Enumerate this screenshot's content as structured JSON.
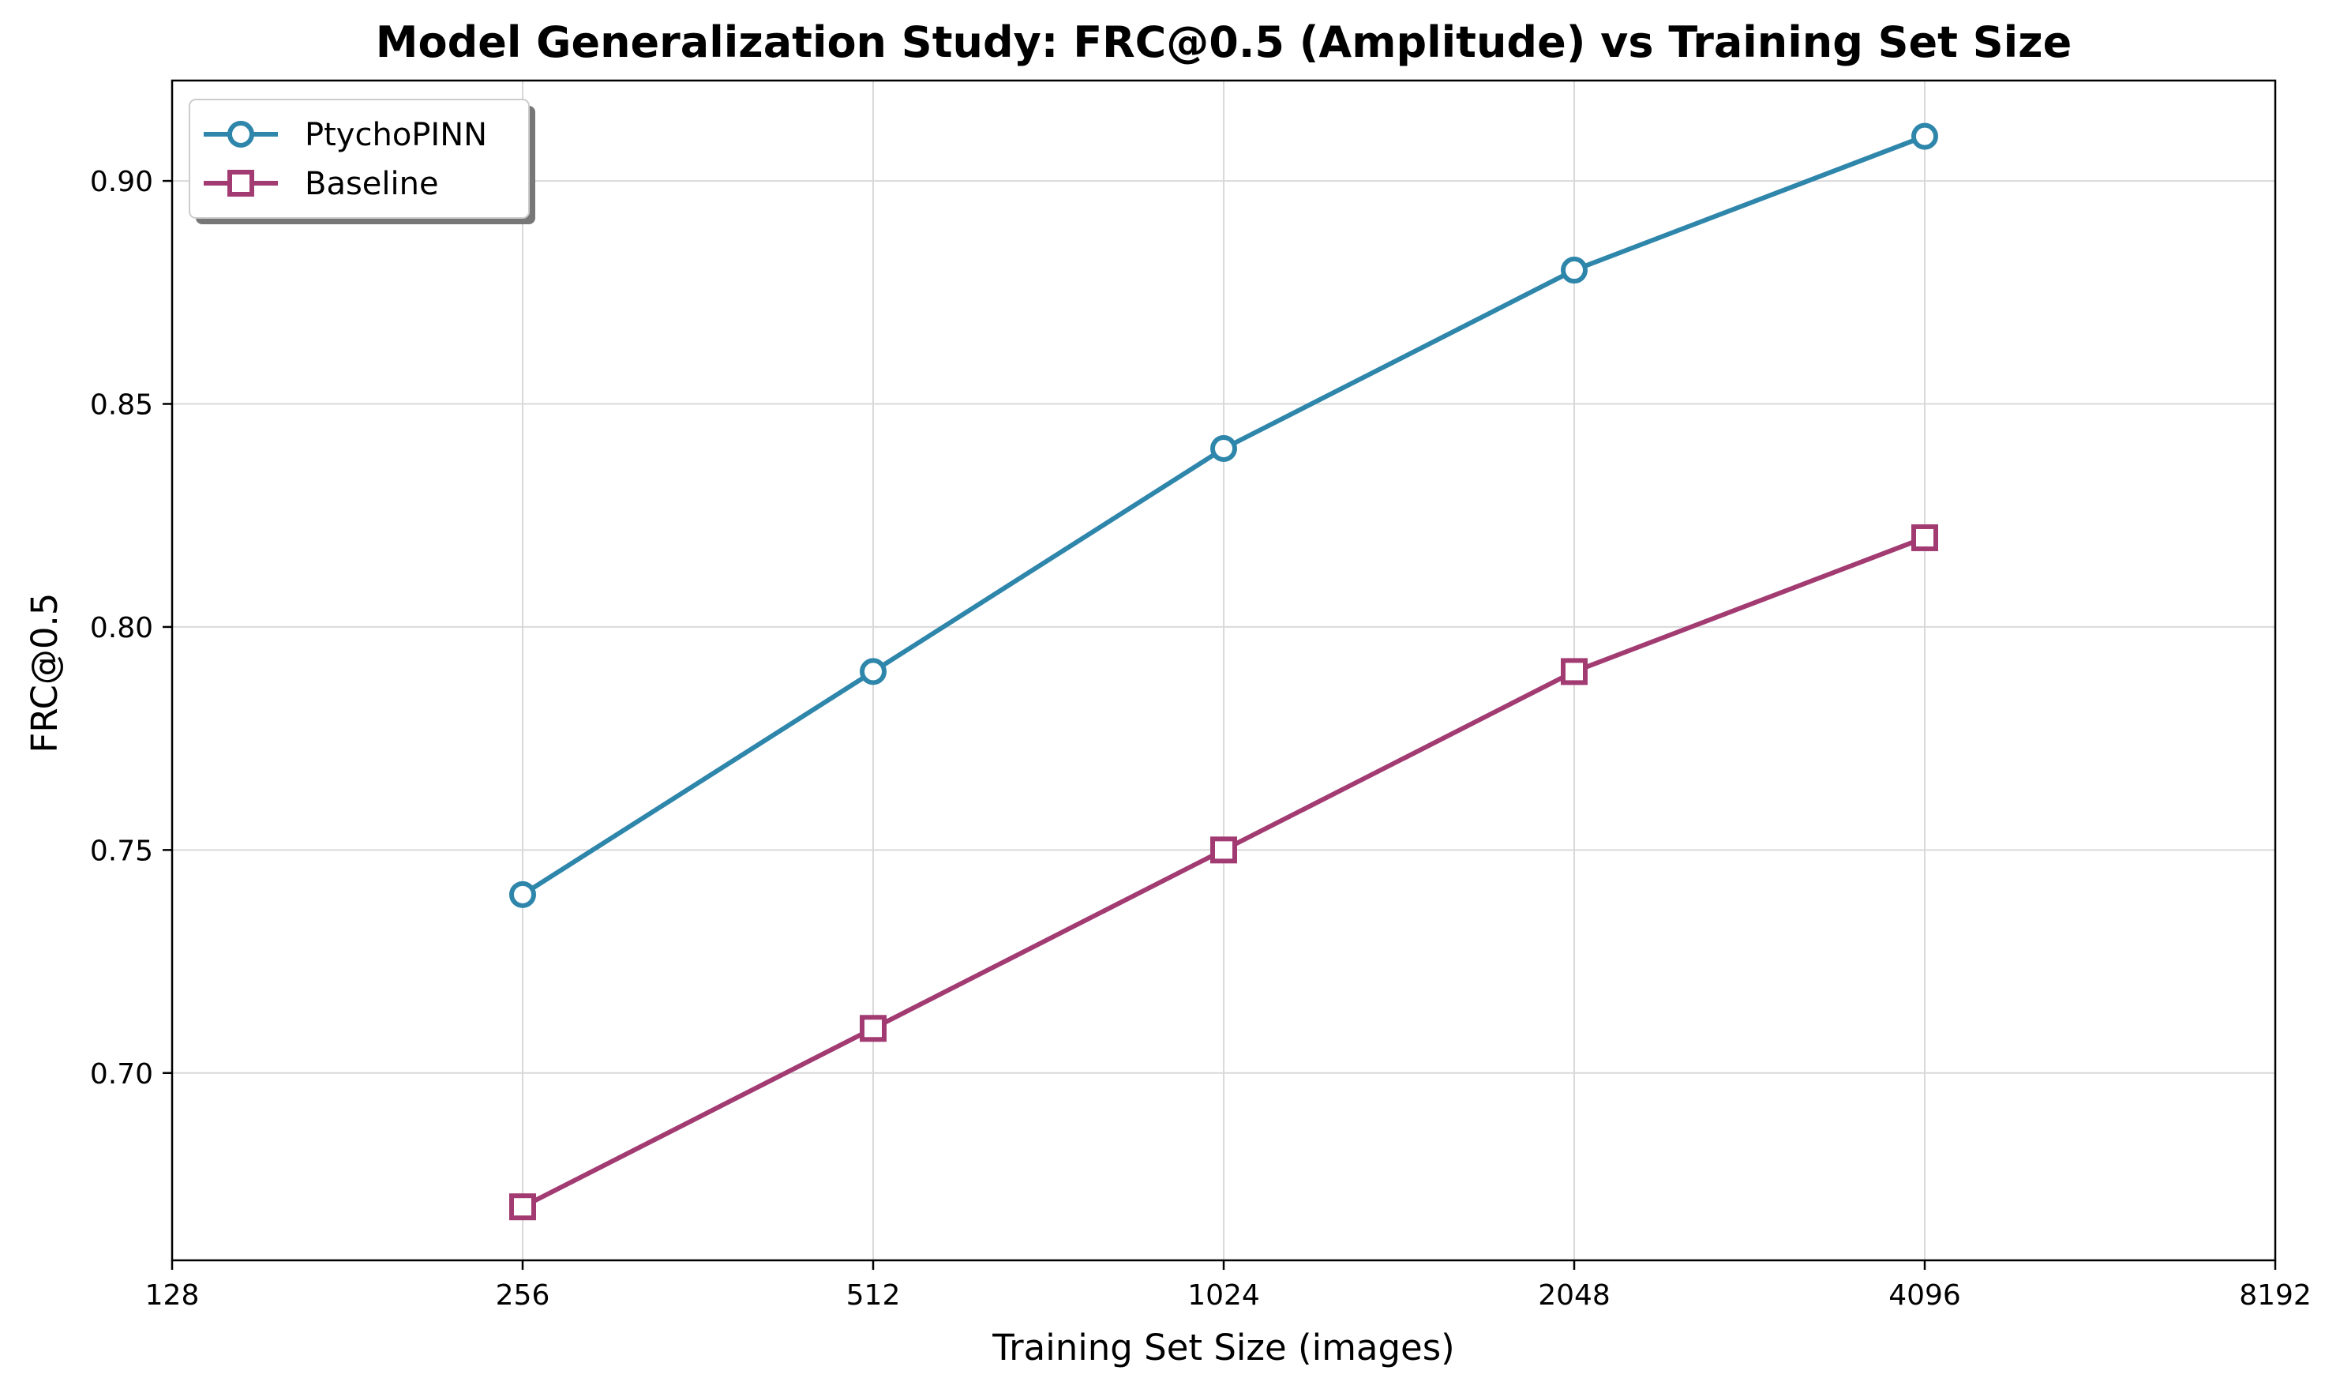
{
  "chart_data": {
    "type": "line",
    "title": "Model Generalization Study: FRC@0.5 (Amplitude) vs Training Set Size",
    "xlabel": "Training Set Size (images)",
    "ylabel": "FRC@0.5",
    "x_scale": "log2",
    "xlim": [
      128,
      8192
    ],
    "ylim": [
      0.658,
      0.9225
    ],
    "x_ticks": [
      128,
      256,
      512,
      1024,
      2048,
      4096,
      8192
    ],
    "x_tick_labels": [
      "128",
      "256",
      "512",
      "1024",
      "2048",
      "4096",
      "8192"
    ],
    "y_ticks": [
      0.7,
      0.75,
      0.8,
      0.85,
      0.9
    ],
    "y_tick_labels": [
      "0.70",
      "0.75",
      "0.80",
      "0.85",
      "0.90"
    ],
    "grid": true,
    "legend_position": "upper-left",
    "x": [
      256,
      512,
      1024,
      2048,
      4096
    ],
    "series": [
      {
        "name": "PtychoPINN",
        "marker": "circle",
        "color": "#2e86ab",
        "values": [
          0.74,
          0.79,
          0.84,
          0.88,
          0.91
        ]
      },
      {
        "name": "Baseline",
        "marker": "square",
        "color": "#a23b72",
        "values": [
          0.67,
          0.71,
          0.75,
          0.79,
          0.82
        ]
      }
    ]
  }
}
